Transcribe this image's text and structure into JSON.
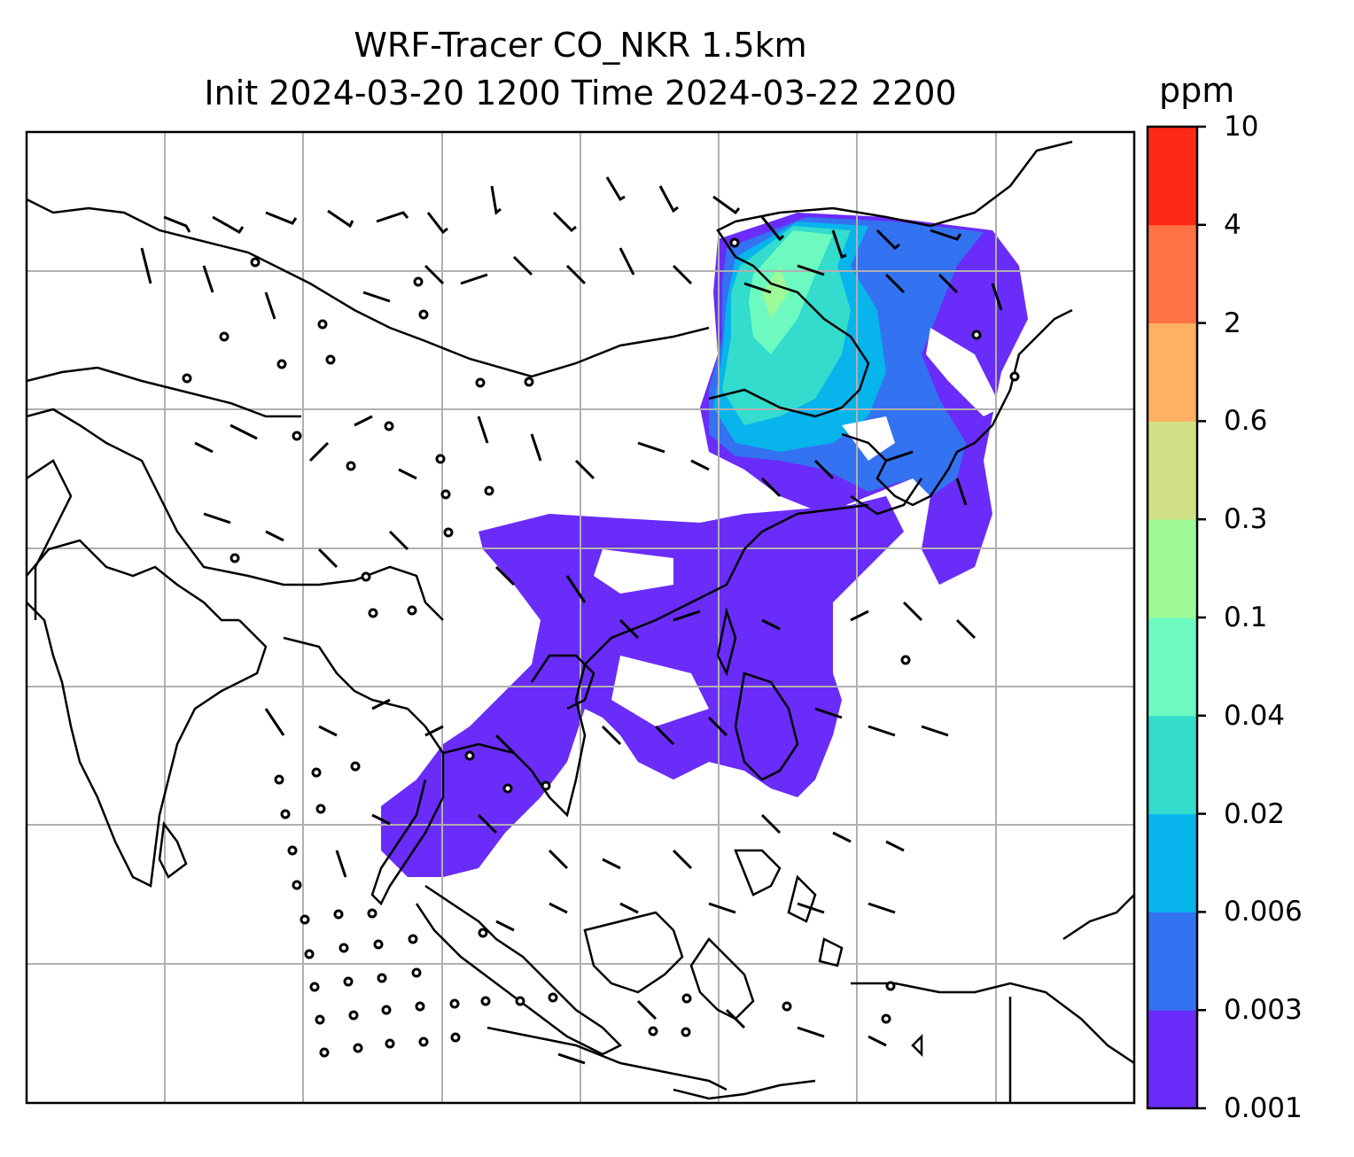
{
  "title": {
    "line1": "WRF-Tracer CO_NKR 1.5km",
    "line2": "Init 2024-03-20 1200 Time 2024-03-22 2200"
  },
  "colorbar": {
    "unit": "ppm",
    "levels": [
      "0.001",
      "0.003",
      "0.006",
      "0.02",
      "0.04",
      "0.1",
      "0.3",
      "0.6",
      "2",
      "4",
      "10"
    ],
    "colors": [
      "#6a2cf8",
      "#3372f0",
      "#07b4ec",
      "#33dccc",
      "#6cfac1",
      "#9dfa97",
      "#d0e084",
      "#ffb063",
      "#fe7243",
      "#fd2a17"
    ]
  },
  "map": {
    "gridlines": "on",
    "barb_color": "#000000",
    "coast_color": "#000000",
    "grid_color": "#b0b0b0"
  }
}
